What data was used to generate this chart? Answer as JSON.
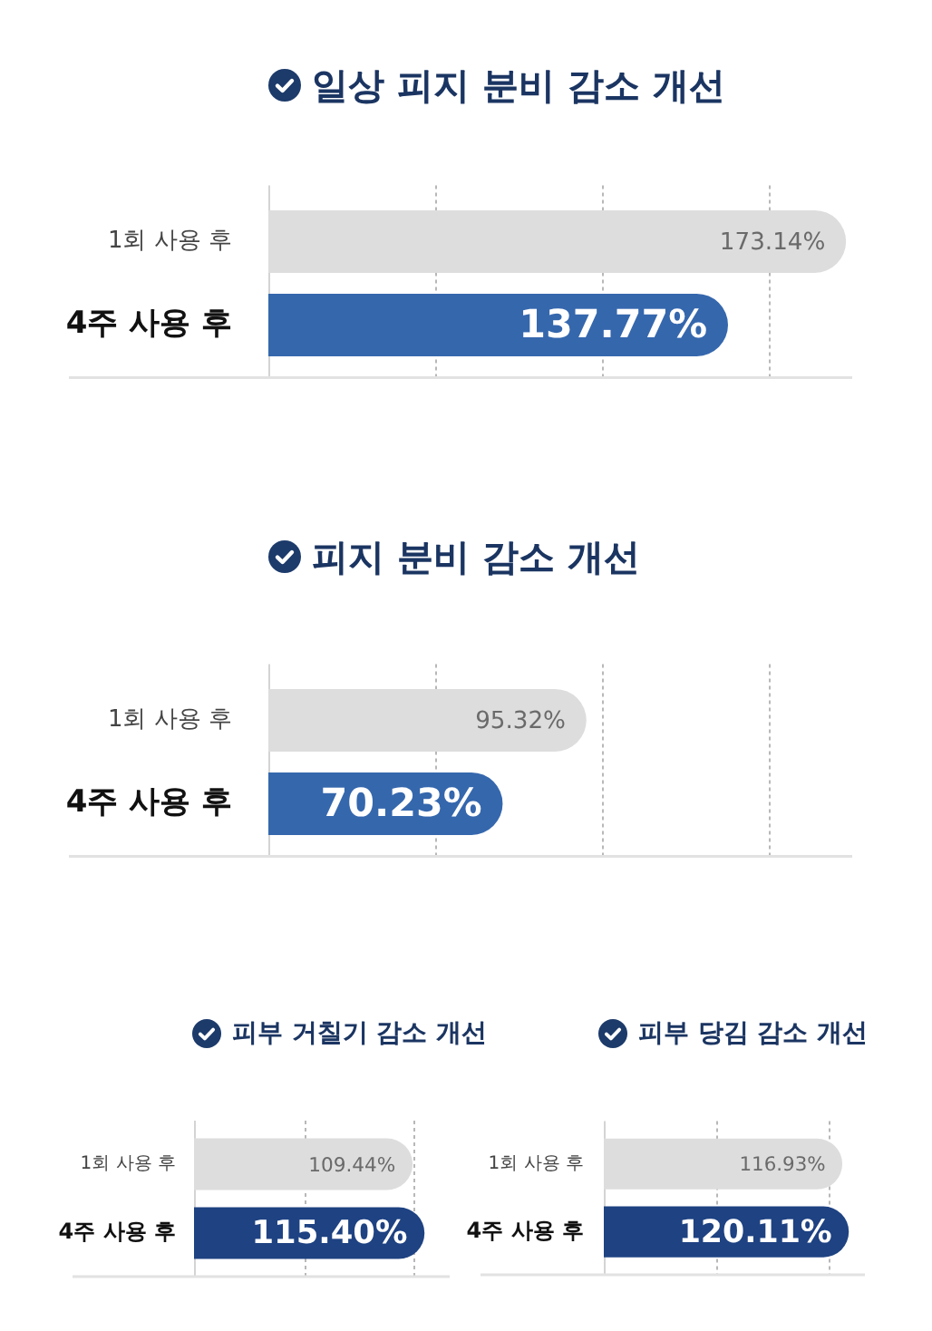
{
  "chart_data": [
    {
      "type": "bar",
      "orientation": "horizontal",
      "title": "일상 피지 분비 감소 개선",
      "categories": [
        "1회 사용 후",
        "4주 사용 후"
      ],
      "values": [
        173.14,
        137.77
      ],
      "colors": [
        "#dddddd",
        "#3567ad"
      ],
      "value_labels": [
        "173.14%",
        "137.77%"
      ],
      "xlim": [
        0,
        175
      ],
      "xticks": [
        {
          "value": 0,
          "label": null
        },
        {
          "value": 50,
          "label": null
        },
        {
          "value": 100,
          "label": null
        },
        {
          "value": 150,
          "label": null
        }
      ],
      "grid": "x",
      "tick_labels": "y"
    },
    {
      "type": "bar",
      "orientation": "horizontal",
      "title": "피지 분비 감소 개선",
      "categories": [
        "1회 사용 후",
        "4주 사용 후"
      ],
      "values": [
        95.32,
        70.23
      ],
      "colors": [
        "#dddddd",
        "#3567ad"
      ],
      "value_labels": [
        "95.32%",
        "70.23%"
      ],
      "xlim": [
        0,
        175
      ],
      "xticks": [
        {
          "value": 0,
          "label": null
        },
        {
          "value": 50,
          "label": null
        },
        {
          "value": 100,
          "label": null
        },
        {
          "value": 150,
          "label": null
        }
      ],
      "grid": "x",
      "tick_labels": "y"
    },
    {
      "type": "bar",
      "orientation": "horizontal",
      "title": "피부 거칠기 감소 개선",
      "categories": [
        "1회 사용 후",
        "4주 사용 후"
      ],
      "values": [
        109.44,
        115.4
      ],
      "colors": [
        "#dddddd",
        "#1e4282"
      ],
      "value_labels": [
        "109.44%",
        "115.40%"
      ],
      "xlim": [
        0,
        128
      ],
      "xticks": [
        {
          "value": 0,
          "label": null
        },
        {
          "value": 55,
          "label": null
        },
        {
          "value": 110,
          "label": null
        }
      ],
      "grid": "x",
      "tick_labels": "y"
    },
    {
      "type": "bar",
      "orientation": "horizontal",
      "title": "피부 당김 감소 개선",
      "categories": [
        "1회 사용 후",
        "4주 사용 후"
      ],
      "values": [
        116.93,
        120.11
      ],
      "colors": [
        "#dddddd",
        "#1e4282"
      ],
      "value_labels": [
        "116.93%",
        "120.11%"
      ],
      "xlim": [
        0,
        128
      ],
      "xticks": [
        {
          "value": 0,
          "label": null
        },
        {
          "value": 55,
          "label": null
        },
        {
          "value": 110,
          "label": null
        }
      ],
      "grid": "x",
      "tick_labels": "y"
    }
  ]
}
